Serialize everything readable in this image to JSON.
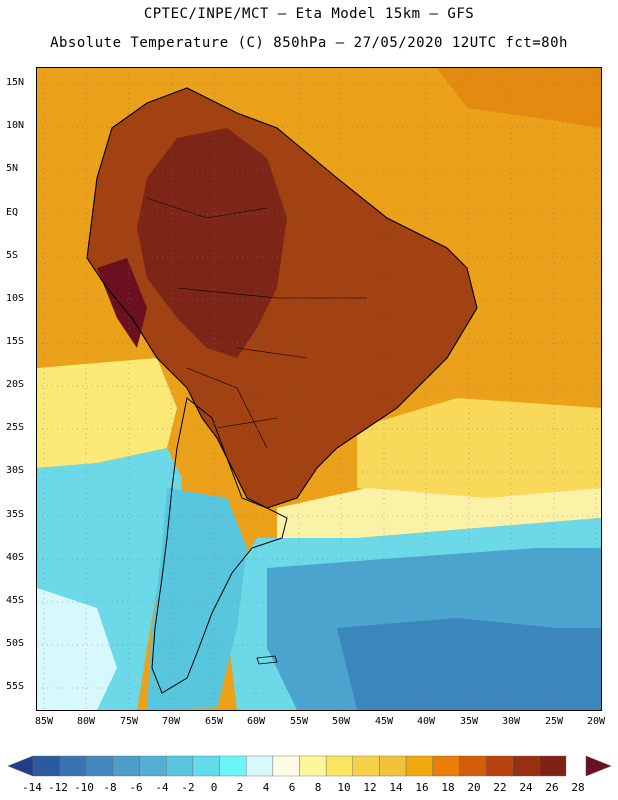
{
  "header": {
    "title_line1": "CPTEC/INPE/MCT –  Eta Model 15km – GFS",
    "title_line2": "Absolute Temperature (C) 850hPa – 27/05/2020 12UTC fct=80h"
  },
  "map": {
    "latitude_labels": [
      "15N",
      "10N",
      "5N",
      "EQ",
      "5S",
      "10S",
      "15S",
      "20S",
      "25S",
      "30S",
      "35S",
      "40S",
      "45S",
      "50S",
      "55S"
    ],
    "longitude_labels": [
      "85W",
      "80W",
      "75W",
      "70W",
      "65W",
      "60W",
      "55W",
      "50W",
      "45W",
      "40W",
      "35W",
      "30W",
      "25W",
      "20W"
    ]
  },
  "legend": {
    "tick_labels": [
      "-14",
      "-12",
      "-10",
      "-8",
      "-6",
      "-4",
      "-2",
      "0",
      "2",
      "4",
      "6",
      "8",
      "10",
      "12",
      "14",
      "16",
      "18",
      "20",
      "22",
      "24",
      "26",
      "28"
    ],
    "colors": [
      "#223d8a",
      "#2c5aa0",
      "#3a73b3",
      "#4488c0",
      "#4d9dcb",
      "#54b0d3",
      "#58c6de",
      "#62dbea",
      "#6cf5f7",
      "#d7f8fc",
      "#fffbe3",
      "#fdf79b",
      "#f9e562",
      "#f6d24a",
      "#f2c23a",
      "#f1a80c",
      "#e97e08",
      "#d45d0a",
      "#b8430e",
      "#963011",
      "#7c2316",
      "#6a1020"
    ]
  },
  "map_colors": {
    "ocean_far_north": "#f0b12a",
    "ocean_warm": "#eba11a",
    "land_hot": "#a24112",
    "land_very_hot": "#7d2617",
    "subtropic_yellow": "#fbe978",
    "cool_cyan": "#6bd9e8",
    "cold_blue": "#4aa4cd",
    "deep_blue": "#3b86bd"
  }
}
